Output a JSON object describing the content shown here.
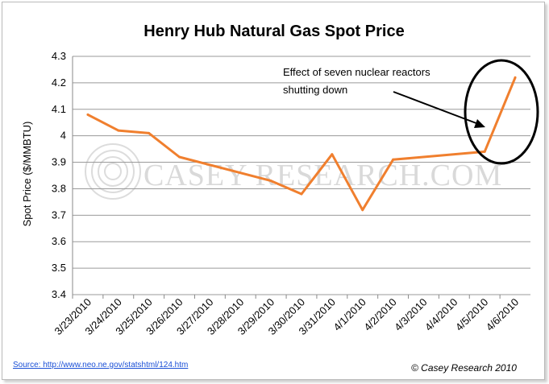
{
  "chart_data": {
    "type": "line",
    "title": "Henry Hub Natural Gas Spot Price",
    "ylabel": "Spot Price ($/MMBTU)",
    "xlabel": "",
    "ylim": [
      3.4,
      4.3
    ],
    "yticks": [
      "3.4",
      "3.5",
      "3.6",
      "3.7",
      "3.8",
      "3.9",
      "4",
      "4.1",
      "4.2",
      "4.3"
    ],
    "categories": [
      "3/23/2010",
      "3/24/2010",
      "3/25/2010",
      "3/26/2010",
      "3/27/2010",
      "3/28/2010",
      "3/29/2010",
      "3/30/2010",
      "3/31/2010",
      "4/1/2010",
      "4/2/2010",
      "4/3/2010",
      "4/4/2010",
      "4/5/2010",
      "4/6/2010"
    ],
    "series": [
      {
        "values": [
          4.08,
          4.02,
          4.01,
          3.92,
          null,
          null,
          3.83,
          3.78,
          3.93,
          3.72,
          3.91,
          null,
          null,
          3.94,
          4.22
        ],
        "color": "#f07f2e"
      }
    ],
    "grid": true,
    "legend": "none",
    "annotation": {
      "text_line1": "Effect of seven nuclear reactors",
      "text_line2": "shutting down"
    },
    "watermark": "CASEY RESEARCH.COM"
  },
  "footer": {
    "source": "Source: http://www.neo.ne.gov/statshtml/124.htm",
    "copyright": "© Casey Research 2010"
  }
}
